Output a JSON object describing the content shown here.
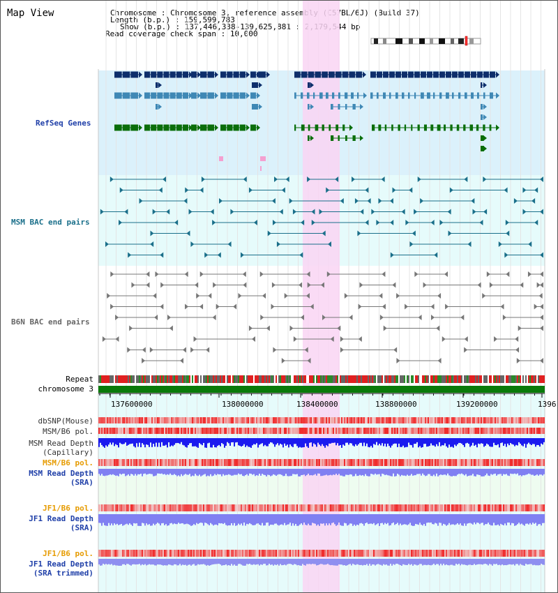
{
  "header": {
    "title": "Map View",
    "rows": [
      {
        "label": "Chromosome     : ",
        "value": "Chromosome 3, reference assembly (C57BL/6J) (Build 37)"
      },
      {
        "label": "Length (b.p.) : ",
        "value": "159,599,783"
      },
      {
        "label": "Show (b.p.) : ",
        "value": "137,446,338-139,625,881 : 2,179,544 bp"
      },
      {
        "label": "Read coverage check span : ",
        "value": "10,000"
      }
    ]
  },
  "tracks": {
    "refseq": "RefSeq Genes",
    "msm_bac": "MSM BAC end pairs",
    "b6n_bac": "B6N BAC end pairs",
    "repeat": "Repeat",
    "chromosome": "chromosome 3",
    "dbsnp": "dbSNP(Mouse)",
    "msm_b6_pol_1": "MSM/B6 pol.",
    "msm_depth_cap_1": "MSM Read Depth",
    "msm_depth_cap_2": "(Capillary)",
    "msm_b6_pol_2": "MSM/B6 pol.",
    "msm_depth_sra_1": "MSM Read Depth",
    "msm_depth_sra_2": "(SRA)",
    "jf1_b6_pol_1": "JF1/B6 pol.",
    "jf1_depth_sra_1": "JF1 Read Depth",
    "jf1_depth_sra_2": "(SRA)",
    "jf1_b6_pol_2": "JF1/B6 pol.",
    "jf1_depth_trim_1": "JF1 Read Depth",
    "jf1_depth_trim_2": "(SRA trimmed)"
  },
  "axis": {
    "ticks": [
      "137600000",
      "138000000",
      "138400000",
      "138800000",
      "139200000",
      "1396"
    ]
  },
  "colors": {
    "refseq_bg": "#dbf1fb",
    "bac_bg": "#e6fbfb",
    "highlight": "#f9d5f3",
    "dark_blue": "#0d2e6b",
    "mid_blue": "#3f88b5",
    "green": "#0a6e0a",
    "teal": "#1a6f8a",
    "grey": "#777777",
    "depth_blue": "#1b1bef",
    "depth_light": "#8080f2",
    "label_blue": "#1f3fa8",
    "label_orange": "#e69b00"
  }
}
